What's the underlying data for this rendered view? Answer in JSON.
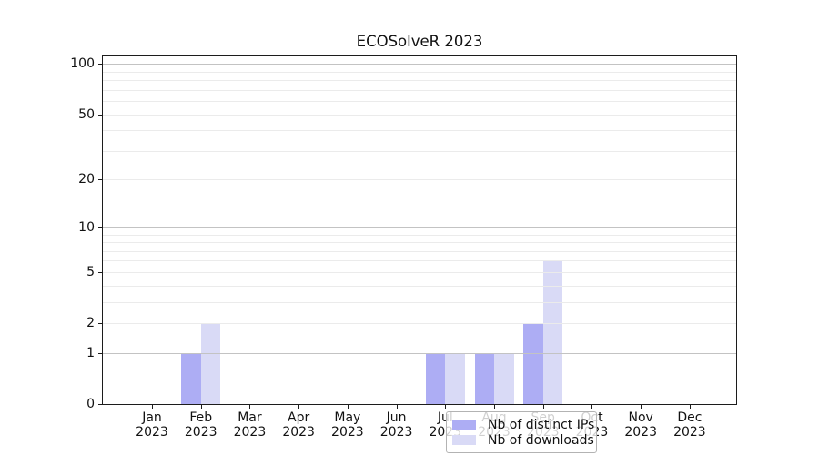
{
  "title": "ECOSolveR 2023",
  "chart_data": {
    "type": "bar",
    "title": "ECOSolveR 2023",
    "categories": [
      "Jan",
      "Feb",
      "Mar",
      "Apr",
      "May",
      "Jun",
      "Jul",
      "Aug",
      "Sep",
      "Oct",
      "Nov",
      "Dec"
    ],
    "x_sublabel": "2023",
    "series": [
      {
        "name": "Nb of distinct IPs",
        "color": "#adadf4",
        "values": [
          0,
          1,
          0,
          0,
          0,
          0,
          1,
          1,
          2,
          0,
          0,
          0
        ]
      },
      {
        "name": "Nb of downloads",
        "color": "#d9daf6",
        "values": [
          0,
          2,
          0,
          0,
          0,
          0,
          1,
          1,
          6,
          0,
          0,
          0
        ]
      }
    ],
    "y_scale": "log10(1+value)",
    "y_axis_ticks": [
      0,
      1,
      2,
      5,
      10,
      20,
      50,
      100
    ],
    "y_major_gridlines": [
      1,
      10,
      100
    ],
    "y_minor_gridlines": [
      2,
      3,
      4,
      5,
      6,
      7,
      8,
      9,
      20,
      30,
      40,
      50,
      60,
      70,
      80,
      90
    ],
    "ylim": [
      0,
      113
    ],
    "grid": "on",
    "legend_position": "bottom-center"
  },
  "colors": {
    "bar_dark": "#adadf4",
    "bar_light": "#d9daf6",
    "major_grid": "#c3c3c3",
    "minor_grid": "#ebebeb",
    "spine": "#1c1c1c",
    "text": "#111111",
    "legend_border": "#b3b3b3"
  }
}
